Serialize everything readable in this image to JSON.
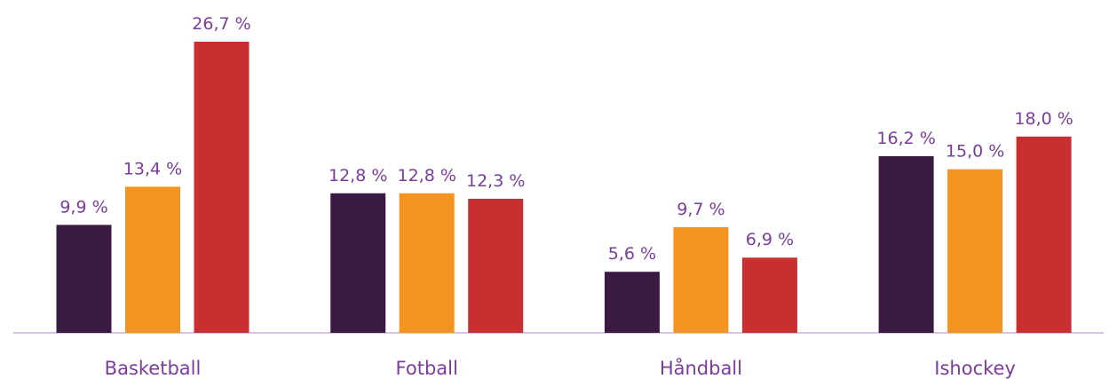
{
  "chart_data": {
    "type": "bar",
    "categories": [
      "Basketball",
      "Fotball",
      "Håndball",
      "Ishockey"
    ],
    "series": [
      {
        "color": "#3a1942",
        "values": [
          9.9,
          12.8,
          5.6,
          16.2
        ],
        "value_labels": [
          "9,9 %",
          "12,8 %",
          "5,6 %",
          "16,2 %"
        ]
      },
      {
        "color": "#f39420",
        "values": [
          13.4,
          12.8,
          9.7,
          15.0
        ],
        "value_labels": [
          "13,4 %",
          "12,8 %",
          "9,7 %",
          "15,0 %"
        ]
      },
      {
        "color": "#c92e31",
        "values": [
          26.7,
          12.3,
          6.9,
          18.0
        ],
        "value_labels": [
          "26,7 %",
          "12,3 %",
          "6,9 %",
          "18,0 %"
        ]
      }
    ]
  }
}
